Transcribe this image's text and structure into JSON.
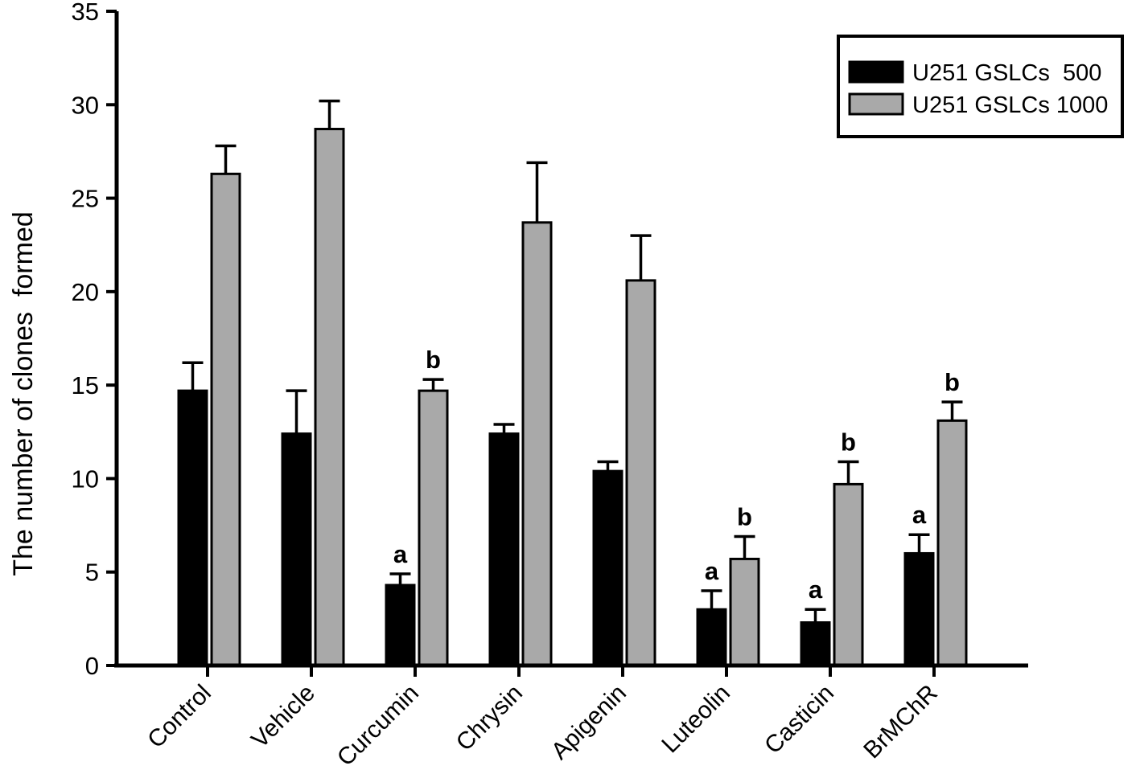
{
  "figure": {
    "background": "#ffffff"
  },
  "chart_data": {
    "type": "bar",
    "title": "",
    "ylabel": "The number of clones  formed",
    "xlabel": "",
    "ylim": [
      0,
      35
    ],
    "yticks": [
      0,
      5,
      10,
      15,
      20,
      25,
      30,
      35
    ],
    "grid": false,
    "legend_position": "top-right",
    "axis_color": "#000000",
    "error_bar_color": "#000000",
    "sig_letter_color": "#000000",
    "categories": [
      "Control",
      "Vehicle",
      "Curcumin",
      "Chrysin",
      "Apigenin",
      "Luteolin",
      "Casticin",
      "BrMChR"
    ],
    "series": [
      {
        "name": "U251 GSLCs  500",
        "color": "#000000",
        "values": [
          14.7,
          12.4,
          4.3,
          12.4,
          10.4,
          3.0,
          2.3,
          6.0
        ],
        "errors_upper": [
          1.5,
          2.3,
          0.6,
          0.5,
          0.5,
          1.0,
          0.7,
          1.0
        ],
        "significance": [
          "",
          "",
          "a",
          "",
          "",
          "a",
          "a",
          "a"
        ]
      },
      {
        "name": "U251 GSLCs 1000",
        "color": "#a9a9a9",
        "values": [
          26.3,
          28.7,
          14.7,
          23.7,
          20.6,
          5.7,
          9.7,
          13.1
        ],
        "errors_upper": [
          1.5,
          1.5,
          0.6,
          3.2,
          2.4,
          1.2,
          1.2,
          1.0
        ],
        "significance": [
          "",
          "",
          "b",
          "",
          "",
          "b",
          "b",
          "b"
        ]
      }
    ]
  }
}
